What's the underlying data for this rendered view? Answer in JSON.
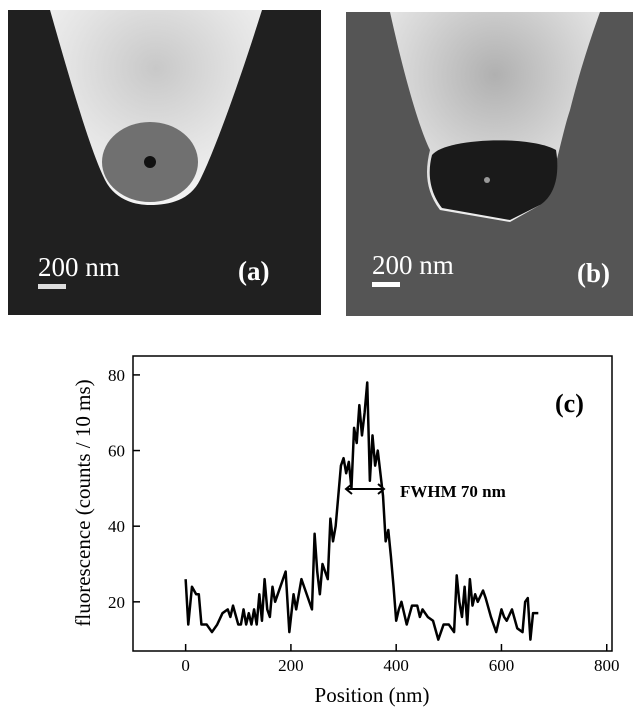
{
  "panels": [
    {
      "scale_label": "200 nm",
      "label": "(a)"
    },
    {
      "scale_label": "200 nm",
      "label": "(b)"
    }
  ],
  "chart_data": {
    "type": "line",
    "panel_label": "(c)",
    "annotation": "FWHM 70 nm",
    "xlabel": "Position (nm)",
    "ylabel": "fluorescence (counts / 10 ms)",
    "color": "#000000",
    "x": [
      0,
      5,
      12,
      20,
      25,
      30,
      40,
      50,
      60,
      70,
      80,
      85,
      90,
      100,
      105,
      110,
      115,
      120,
      125,
      130,
      135,
      140,
      145,
      150,
      155,
      160,
      165,
      170,
      180,
      190,
      197,
      205,
      210,
      220,
      230,
      240,
      245,
      250,
      255,
      260,
      270,
      275,
      280,
      285,
      290,
      295,
      300,
      305,
      310,
      315,
      320,
      325,
      330,
      335,
      340,
      345,
      350,
      355,
      360,
      365,
      370,
      375,
      380,
      385,
      390,
      395,
      400,
      405,
      410,
      420,
      430,
      440,
      445,
      450,
      460,
      470,
      480,
      490,
      500,
      510,
      515,
      520,
      525,
      530,
      535,
      540,
      545,
      550,
      555,
      565,
      570,
      580,
      590,
      600,
      605,
      610,
      620,
      630,
      640,
      645,
      650,
      655,
      660,
      670
    ],
    "values": [
      26,
      14,
      24,
      22,
      22,
      14,
      14,
      12,
      14,
      17,
      18,
      16,
      19,
      14,
      14,
      18,
      14,
      17,
      14,
      18,
      14,
      22,
      15,
      26,
      18,
      16,
      24,
      20,
      24,
      28,
      12,
      22,
      18,
      26,
      22,
      18,
      38,
      28,
      22,
      30,
      26,
      42,
      36,
      40,
      48,
      56,
      58,
      54,
      57,
      50,
      66,
      62,
      72,
      64,
      70,
      78,
      52,
      64,
      56,
      60,
      54,
      48,
      36,
      39,
      32,
      24,
      15,
      18,
      20,
      14,
      19,
      19,
      16,
      18,
      16,
      15,
      10,
      14,
      14,
      12,
      27,
      20,
      16,
      24,
      14,
      26,
      19,
      22,
      20,
      23,
      21,
      16,
      12,
      18,
      16,
      15,
      18,
      13,
      12,
      20,
      21,
      10,
      17,
      17
    ],
    "xlim": [
      -100,
      810
    ],
    "ylim": [
      7,
      85
    ],
    "xticks": [
      0,
      200,
      400,
      600,
      800
    ],
    "yticks": [
      20,
      40,
      60,
      80
    ],
    "grid": false
  }
}
